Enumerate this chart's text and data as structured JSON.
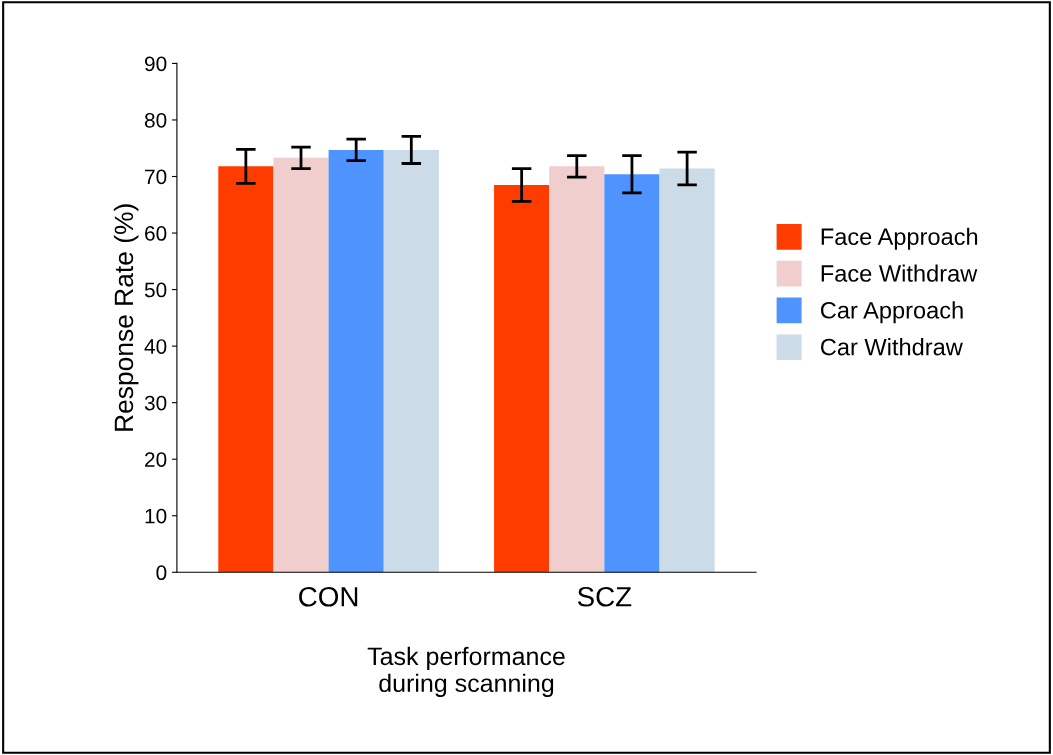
{
  "chart_data": {
    "type": "bar",
    "xlabel": "Task performance\nduring scanning",
    "ylabel": "Response Rate (%)",
    "categories": [
      "CON",
      "SCZ"
    ],
    "series": [
      {
        "name": "Face Approach",
        "color": "#ff3c00",
        "values": [
          71.8,
          68.5
        ],
        "errors": [
          3.0,
          2.9
        ]
      },
      {
        "name": "Face Withdraw",
        "color": "#f0cece",
        "values": [
          73.3,
          71.8
        ],
        "errors": [
          1.9,
          1.9
        ]
      },
      {
        "name": "Car Approach",
        "color": "#4f93ff",
        "values": [
          74.7,
          70.4
        ],
        "errors": [
          1.9,
          3.3
        ]
      },
      {
        "name": "Car Withdraw",
        "color": "#ccdbe8",
        "values": [
          74.7,
          71.4
        ],
        "errors": [
          2.4,
          2.9
        ]
      }
    ],
    "ylim": [
      0,
      90
    ],
    "yticks": [
      0,
      10,
      20,
      30,
      40,
      50,
      60,
      70,
      80,
      90
    ],
    "grid": false,
    "legend": "right"
  }
}
